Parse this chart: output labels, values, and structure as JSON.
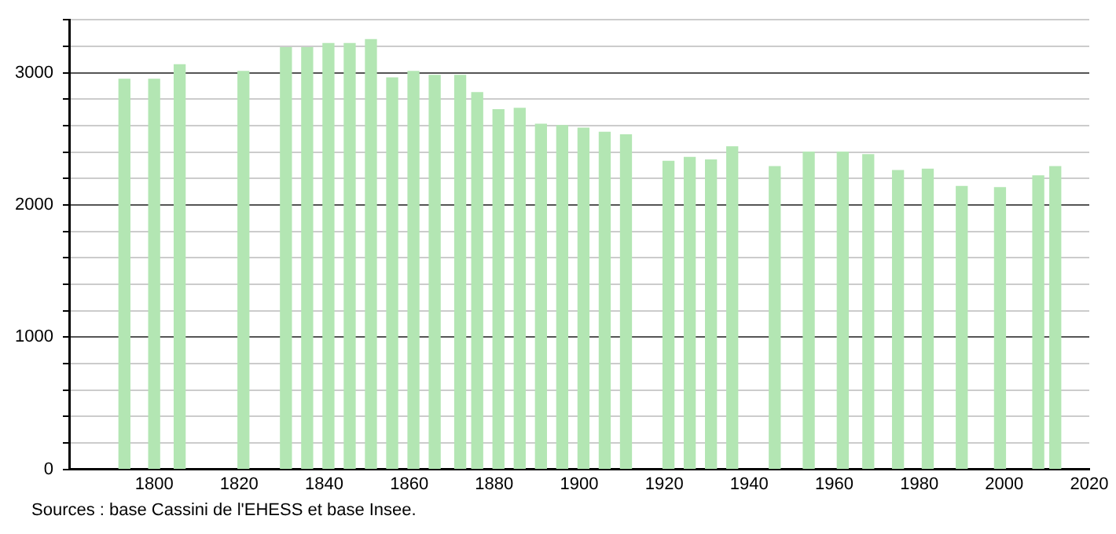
{
  "chart_data": {
    "type": "bar",
    "x": [
      1793,
      1800,
      1806,
      1821,
      1831,
      1836,
      1841,
      1846,
      1851,
      1856,
      1861,
      1866,
      1872,
      1876,
      1881,
      1886,
      1891,
      1896,
      1901,
      1906,
      1911,
      1921,
      1926,
      1931,
      1936,
      1946,
      1954,
      1962,
      1968,
      1975,
      1982,
      1990,
      1999,
      2008,
      2012
    ],
    "values": [
      2950,
      2950,
      3060,
      3010,
      3190,
      3190,
      3220,
      3220,
      3250,
      2960,
      3010,
      2980,
      2980,
      2850,
      2720,
      2730,
      2610,
      2600,
      2580,
      2550,
      2530,
      2330,
      2360,
      2340,
      2440,
      2290,
      2400,
      2400,
      2380,
      2260,
      2270,
      2140,
      2130,
      2220,
      2290
    ],
    "color": "#b3e6b3",
    "xlim": [
      1780,
      2020
    ],
    "xticks": [
      1800,
      1820,
      1840,
      1860,
      1880,
      1900,
      1920,
      1940,
      1960,
      1980,
      2000,
      2020
    ],
    "ylim": [
      0,
      3400
    ],
    "yticks": [
      0,
      {
        "value": 200,
        "label": null
      },
      {
        "value": 400,
        "label": null
      },
      {
        "value": 600,
        "label": null
      },
      {
        "value": 800,
        "label": null
      },
      1000,
      {
        "value": 1200,
        "label": null
      },
      {
        "value": 1400,
        "label": null
      },
      {
        "value": 1600,
        "label": null
      },
      {
        "value": 1800,
        "label": null
      },
      2000,
      {
        "value": 2200,
        "label": null
      },
      {
        "value": 2400,
        "label": null
      },
      {
        "value": 2600,
        "label": null
      },
      {
        "value": 2800,
        "label": null
      },
      3000,
      {
        "value": 3200,
        "label": null
      },
      {
        "value": 3400,
        "label": null
      }
    ],
    "grid": "y",
    "legend": false,
    "annotations": [
      "Sources : base Cassini de l'EHESS et base Insee."
    ]
  }
}
